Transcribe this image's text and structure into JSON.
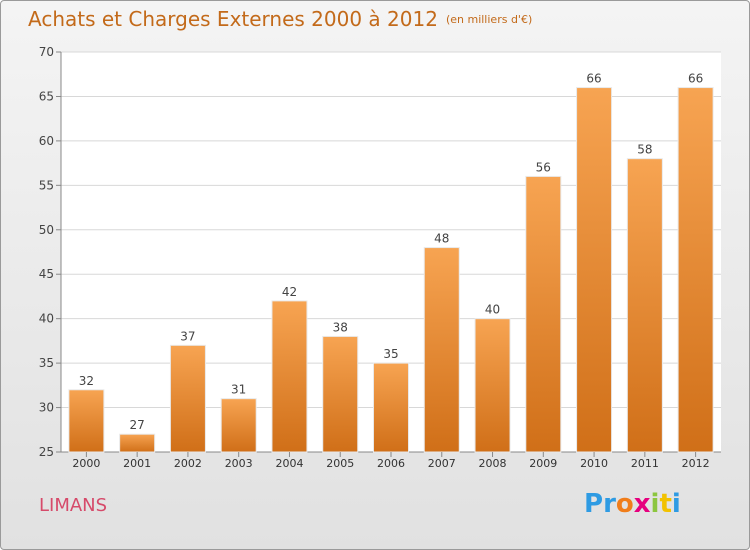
{
  "title": "Achats et Charges Externes 2000 à 2012",
  "subtitle": "(en milliers d'€)",
  "commune": "LIMANS",
  "logo": {
    "letters": [
      "P",
      "r",
      "o",
      "x",
      "i",
      "t",
      "i"
    ],
    "colors": [
      "#2e9be3",
      "#2e9be3",
      "#f07d1a",
      "#e6007e",
      "#8cc63f",
      "#f2c200",
      "#2e9be3"
    ]
  },
  "colors": {
    "bar_light": "#f7a452",
    "bar_dark": "#d06f18",
    "title": "#c36a1a",
    "commune": "#d64a6a"
  },
  "chart_data": {
    "type": "bar",
    "title": "Achats et Charges Externes 2000 à 2012",
    "categories": [
      "2000",
      "2001",
      "2002",
      "2003",
      "2004",
      "2005",
      "2006",
      "2007",
      "2008",
      "2009",
      "2010",
      "2011",
      "2012"
    ],
    "values": [
      32,
      27,
      37,
      31,
      42,
      38,
      35,
      48,
      40,
      56,
      66,
      58,
      66
    ],
    "ylim": [
      25,
      70
    ],
    "yticks": [
      25,
      30,
      35,
      40,
      45,
      50,
      55,
      60,
      65,
      70
    ],
    "grid": true
  }
}
